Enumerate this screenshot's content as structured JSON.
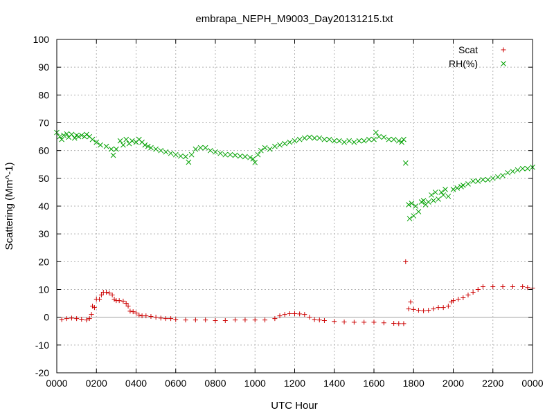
{
  "chart_data": {
    "type": "scatter",
    "title": "embrapa_NEPH_M9003_Day20131215.txt",
    "xlabel": "UTC Hour",
    "ylabel": "Scattering (Mm^-1)",
    "xlim": [
      0,
      24
    ],
    "ylim": [
      -20,
      100
    ],
    "x_ticks": [
      0,
      2,
      4,
      6,
      8,
      10,
      12,
      14,
      16,
      18,
      20,
      22,
      24
    ],
    "x_tick_labels": [
      "0000",
      "0200",
      "0400",
      "0600",
      "0800",
      "1000",
      "1200",
      "1400",
      "1600",
      "1800",
      "2000",
      "2200",
      "0000"
    ],
    "y_ticks": [
      -20,
      -10,
      0,
      10,
      20,
      30,
      40,
      50,
      60,
      70,
      80,
      90,
      100
    ],
    "grid": true,
    "legend_position": "top-right",
    "zero_line": true,
    "series": [
      {
        "name": "Scat",
        "marker": "plus",
        "color": "#cc0000",
        "points": [
          [
            0.25,
            -0.8
          ],
          [
            0.5,
            -0.5
          ],
          [
            0.75,
            -0.3
          ],
          [
            1.0,
            -0.5
          ],
          [
            1.25,
            -0.7
          ],
          [
            1.5,
            -1.0
          ],
          [
            1.65,
            -0.5
          ],
          [
            1.75,
            1.0
          ],
          [
            1.8,
            4.0
          ],
          [
            1.9,
            3.5
          ],
          [
            2.0,
            6.5
          ],
          [
            2.15,
            6.5
          ],
          [
            2.25,
            8.0
          ],
          [
            2.35,
            9.0
          ],
          [
            2.5,
            9.0
          ],
          [
            2.65,
            8.7
          ],
          [
            2.8,
            8.0
          ],
          [
            2.9,
            6.5
          ],
          [
            3.0,
            6.0
          ],
          [
            3.15,
            6.0
          ],
          [
            3.35,
            5.8
          ],
          [
            3.5,
            5.0
          ],
          [
            3.6,
            4.0
          ],
          [
            3.7,
            2.2
          ],
          [
            3.85,
            2.0
          ],
          [
            4.0,
            1.5
          ],
          [
            4.15,
            0.8
          ],
          [
            4.3,
            0.5
          ],
          [
            4.5,
            0.5
          ],
          [
            4.75,
            0.3
          ],
          [
            5.0,
            0.0
          ],
          [
            5.25,
            -0.3
          ],
          [
            5.5,
            -0.5
          ],
          [
            5.75,
            -0.5
          ],
          [
            6.0,
            -0.8
          ],
          [
            6.5,
            -1.0
          ],
          [
            7.0,
            -1.0
          ],
          [
            7.5,
            -1.0
          ],
          [
            8.0,
            -1.2
          ],
          [
            8.5,
            -1.2
          ],
          [
            9.0,
            -1.0
          ],
          [
            9.5,
            -1.0
          ],
          [
            10.0,
            -1.0
          ],
          [
            10.5,
            -1.0
          ],
          [
            11.0,
            -0.5
          ],
          [
            11.25,
            0.5
          ],
          [
            11.5,
            1.0
          ],
          [
            11.75,
            1.3
          ],
          [
            12.0,
            1.3
          ],
          [
            12.25,
            1.2
          ],
          [
            12.5,
            1.0
          ],
          [
            12.75,
            0.0
          ],
          [
            13.0,
            -0.8
          ],
          [
            13.25,
            -1.0
          ],
          [
            13.5,
            -1.2
          ],
          [
            14.0,
            -1.5
          ],
          [
            14.5,
            -1.7
          ],
          [
            15.0,
            -1.8
          ],
          [
            15.5,
            -1.8
          ],
          [
            16.0,
            -1.8
          ],
          [
            16.5,
            -2.0
          ],
          [
            17.0,
            -2.2
          ],
          [
            17.25,
            -2.3
          ],
          [
            17.5,
            -2.3
          ],
          [
            17.6,
            20.0
          ],
          [
            17.75,
            3.0
          ],
          [
            17.85,
            5.5
          ],
          [
            18.0,
            2.8
          ],
          [
            18.25,
            2.5
          ],
          [
            18.5,
            2.3
          ],
          [
            18.75,
            2.5
          ],
          [
            19.0,
            3.0
          ],
          [
            19.25,
            3.5
          ],
          [
            19.5,
            3.5
          ],
          [
            19.75,
            4.0
          ],
          [
            19.9,
            5.5
          ],
          [
            20.0,
            6.0
          ],
          [
            20.25,
            6.5
          ],
          [
            20.5,
            7.0
          ],
          [
            20.75,
            8.0
          ],
          [
            21.0,
            9.0
          ],
          [
            21.25,
            10.0
          ],
          [
            21.5,
            11.0
          ],
          [
            22.0,
            11.0
          ],
          [
            22.5,
            11.0
          ],
          [
            23.0,
            11.0
          ],
          [
            23.5,
            11.0
          ],
          [
            23.75,
            10.7
          ],
          [
            24.0,
            10.5
          ]
        ]
      },
      {
        "name": "RH(%)",
        "marker": "cross",
        "color": "#00a000",
        "points": [
          [
            0.0,
            66.5
          ],
          [
            0.15,
            65.0
          ],
          [
            0.25,
            64.0
          ],
          [
            0.35,
            65.5
          ],
          [
            0.5,
            66.0
          ],
          [
            0.6,
            64.8
          ],
          [
            0.75,
            65.8
          ],
          [
            0.9,
            64.5
          ],
          [
            1.0,
            65.5
          ],
          [
            1.1,
            65.0
          ],
          [
            1.25,
            65.5
          ],
          [
            1.4,
            65.0
          ],
          [
            1.5,
            65.8
          ],
          [
            1.65,
            65.0
          ],
          [
            1.8,
            64.0
          ],
          [
            2.0,
            63.0
          ],
          [
            2.2,
            62.0
          ],
          [
            2.5,
            61.5
          ],
          [
            2.75,
            60.5
          ],
          [
            2.85,
            58.3
          ],
          [
            3.0,
            60.5
          ],
          [
            3.2,
            63.5
          ],
          [
            3.35,
            62.0
          ],
          [
            3.5,
            64.0
          ],
          [
            3.65,
            62.5
          ],
          [
            3.8,
            63.5
          ],
          [
            4.0,
            63.0
          ],
          [
            4.15,
            64.0
          ],
          [
            4.3,
            63.0
          ],
          [
            4.45,
            62.0
          ],
          [
            4.6,
            61.5
          ],
          [
            4.75,
            61.0
          ],
          [
            5.0,
            60.5
          ],
          [
            5.25,
            60.0
          ],
          [
            5.5,
            59.5
          ],
          [
            5.75,
            59.0
          ],
          [
            6.0,
            58.5
          ],
          [
            6.25,
            58.0
          ],
          [
            6.5,
            57.8
          ],
          [
            6.65,
            55.8
          ],
          [
            6.8,
            58.5
          ],
          [
            7.0,
            60.5
          ],
          [
            7.25,
            61.0
          ],
          [
            7.5,
            61.0
          ],
          [
            7.75,
            60.0
          ],
          [
            8.0,
            59.5
          ],
          [
            8.25,
            59.0
          ],
          [
            8.5,
            58.5
          ],
          [
            8.75,
            58.5
          ],
          [
            9.0,
            58.3
          ],
          [
            9.25,
            58.0
          ],
          [
            9.5,
            57.8
          ],
          [
            9.75,
            57.5
          ],
          [
            9.9,
            57.0
          ],
          [
            10.0,
            55.7
          ],
          [
            10.15,
            58.5
          ],
          [
            10.3,
            60.0
          ],
          [
            10.5,
            61.0
          ],
          [
            10.75,
            60.5
          ],
          [
            11.0,
            61.5
          ],
          [
            11.25,
            62.0
          ],
          [
            11.5,
            62.5
          ],
          [
            11.75,
            63.0
          ],
          [
            12.0,
            63.5
          ],
          [
            12.25,
            64.0
          ],
          [
            12.5,
            64.5
          ],
          [
            12.75,
            64.8
          ],
          [
            13.0,
            64.5
          ],
          [
            13.25,
            64.5
          ],
          [
            13.5,
            64.0
          ],
          [
            13.75,
            64.0
          ],
          [
            14.0,
            63.5
          ],
          [
            14.25,
            63.5
          ],
          [
            14.5,
            63.0
          ],
          [
            14.75,
            63.5
          ],
          [
            15.0,
            63.0
          ],
          [
            15.25,
            63.5
          ],
          [
            15.5,
            63.5
          ],
          [
            15.75,
            64.0
          ],
          [
            16.0,
            64.0
          ],
          [
            16.1,
            66.5
          ],
          [
            16.25,
            65.0
          ],
          [
            16.5,
            64.8
          ],
          [
            16.75,
            64.0
          ],
          [
            17.0,
            64.0
          ],
          [
            17.25,
            63.5
          ],
          [
            17.4,
            63.0
          ],
          [
            17.5,
            64.0
          ],
          [
            17.6,
            55.5
          ],
          [
            17.75,
            40.5
          ],
          [
            17.8,
            35.5
          ],
          [
            17.9,
            41.0
          ],
          [
            18.0,
            36.5
          ],
          [
            18.1,
            40.0
          ],
          [
            18.25,
            38.0
          ],
          [
            18.4,
            41.5
          ],
          [
            18.5,
            42.0
          ],
          [
            18.6,
            40.5
          ],
          [
            18.75,
            41.5
          ],
          [
            18.9,
            44.0
          ],
          [
            19.0,
            42.0
          ],
          [
            19.1,
            45.0
          ],
          [
            19.25,
            42.5
          ],
          [
            19.4,
            45.0
          ],
          [
            19.5,
            44.0
          ],
          [
            19.6,
            46.0
          ],
          [
            19.75,
            43.5
          ],
          [
            20.0,
            46.0
          ],
          [
            20.2,
            46.5
          ],
          [
            20.4,
            47.0
          ],
          [
            20.5,
            47.5
          ],
          [
            20.75,
            48.0
          ],
          [
            21.0,
            49.0
          ],
          [
            21.25,
            49.0
          ],
          [
            21.5,
            49.5
          ],
          [
            21.75,
            49.5
          ],
          [
            22.0,
            50.0
          ],
          [
            22.25,
            50.5
          ],
          [
            22.5,
            51.0
          ],
          [
            22.75,
            52.0
          ],
          [
            23.0,
            52.5
          ],
          [
            23.25,
            53.0
          ],
          [
            23.5,
            53.5
          ],
          [
            23.75,
            53.5
          ],
          [
            24.0,
            54.0
          ]
        ]
      }
    ]
  }
}
